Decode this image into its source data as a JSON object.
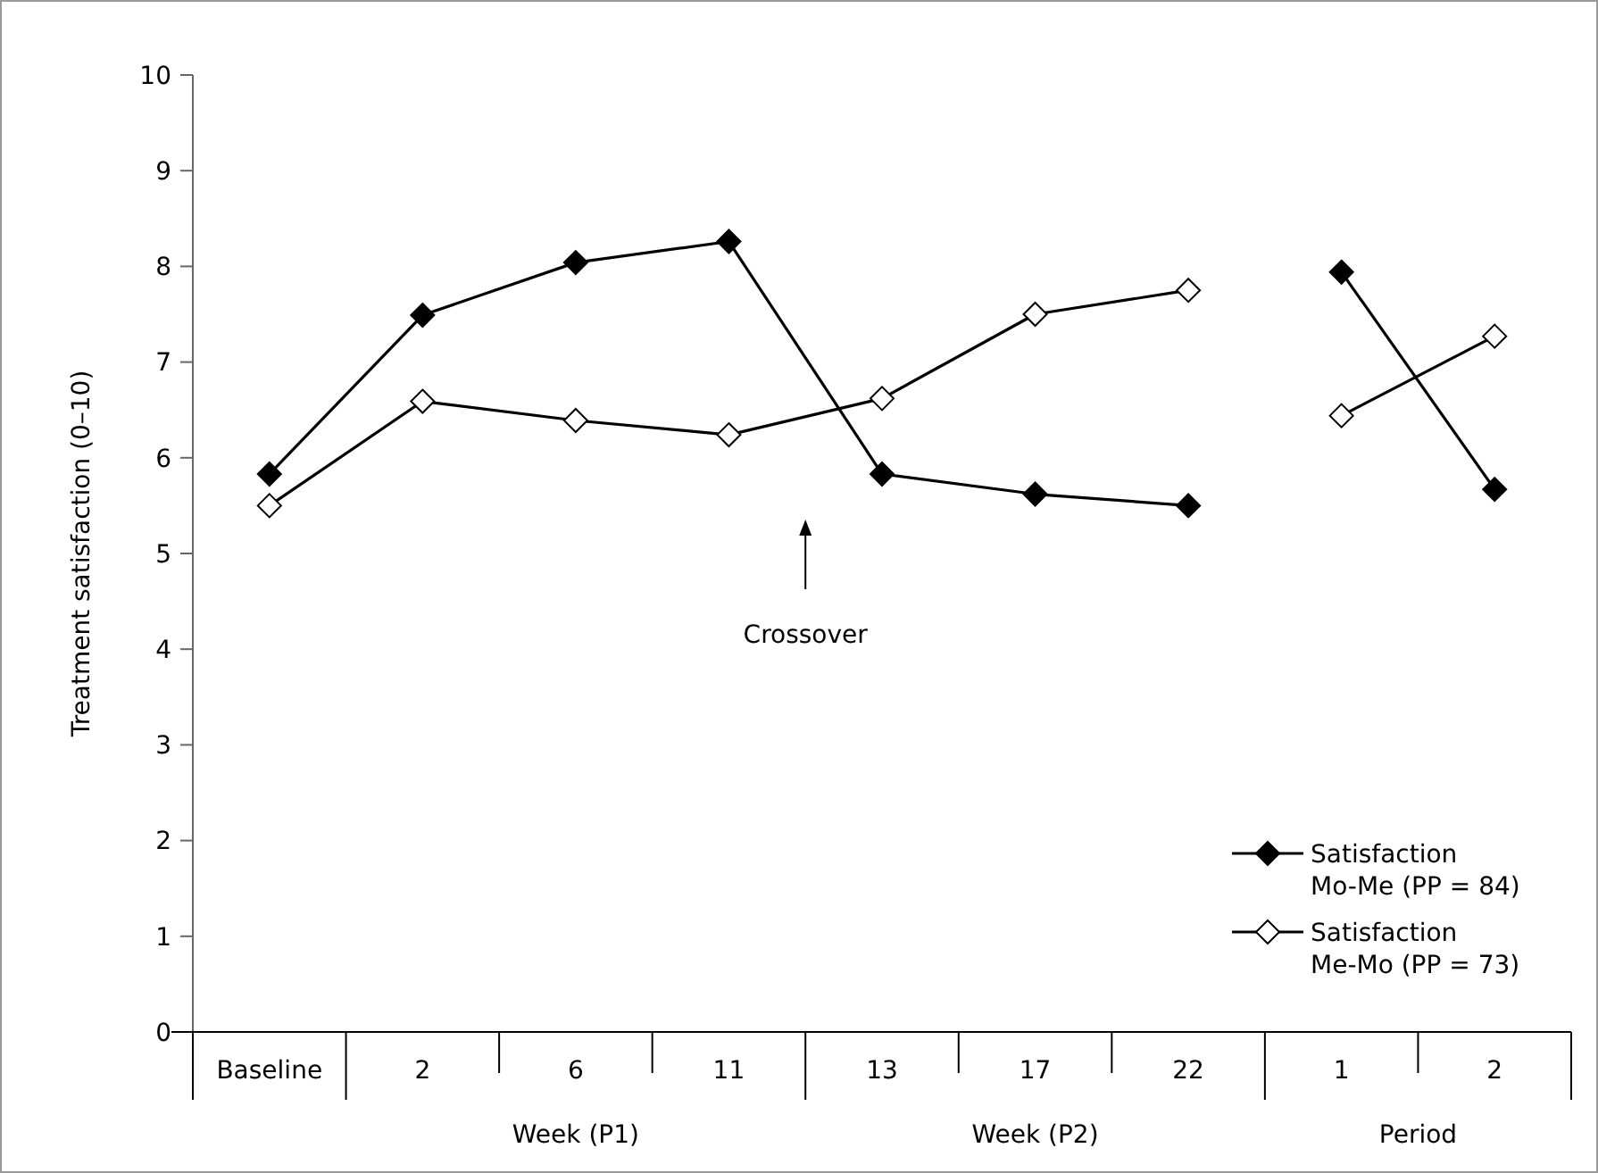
{
  "chart_data": {
    "type": "line",
    "ylabel": "Treatment satisfaction (0–10)",
    "categories": [
      "Baseline",
      "2",
      "6",
      "11",
      "13",
      "17",
      "22",
      "1",
      "2"
    ],
    "series": [
      {
        "name": "Satisfaction\nMo-Me (PP = 84)",
        "color": "#000000",
        "marker": "diamond",
        "values": [
          5.83,
          7.49,
          8.04,
          8.26,
          5.83,
          5.62,
          5.5,
          7.94,
          5.67
        ]
      },
      {
        "name": "Satisfaction\nMe-Mo (PP = 73)",
        "color": "#ffffff",
        "marker": "diamond",
        "values": [
          5.5,
          6.59,
          6.39,
          6.24,
          6.62,
          7.5,
          7.75,
          6.44,
          7.27
        ]
      }
    ],
    "ylim": [
      0,
      10
    ],
    "yticks": [
      0,
      1,
      2,
      3,
      4,
      5,
      6,
      7,
      8,
      9,
      10
    ],
    "grid": false,
    "legend": "bottom right",
    "annotations": [
      "Crossover",
      "Week (P1)",
      "Week (P2)",
      "Period"
    ]
  }
}
